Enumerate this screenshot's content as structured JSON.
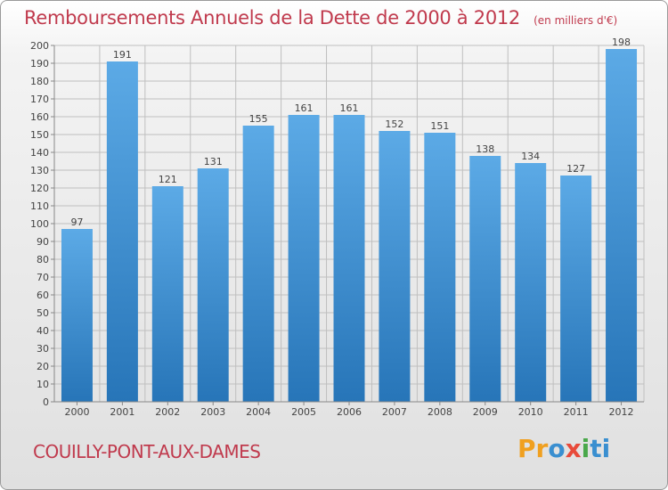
{
  "header": {
    "title": "Remboursements Annuels de la Dette de 2000 à 2012",
    "unit": "(en milliers d'€)"
  },
  "footer": {
    "commune": "COUILLY-PONT-AUX-DAMES",
    "logo_text": "Proxiti",
    "logo_parts": [
      "Pr",
      "o",
      "x",
      "i",
      "ti"
    ]
  },
  "colors": {
    "bar_light": "#5caae6",
    "bar_dark": "#2775b8",
    "title": "#c03a4d",
    "grid": "#bfbfbf"
  },
  "chart_data": {
    "type": "bar",
    "title": "Remboursements Annuels de la Dette de 2000 à 2012",
    "xlabel": "",
    "ylabel": "",
    "categories": [
      "2000",
      "2001",
      "2002",
      "2003",
      "2004",
      "2005",
      "2006",
      "2007",
      "2008",
      "2009",
      "2010",
      "2011",
      "2012"
    ],
    "values": [
      97,
      191,
      121,
      131,
      155,
      161,
      161,
      152,
      151,
      138,
      134,
      127,
      198
    ],
    "ylim": [
      0,
      200
    ],
    "ytick_step": 10,
    "grid": true
  }
}
